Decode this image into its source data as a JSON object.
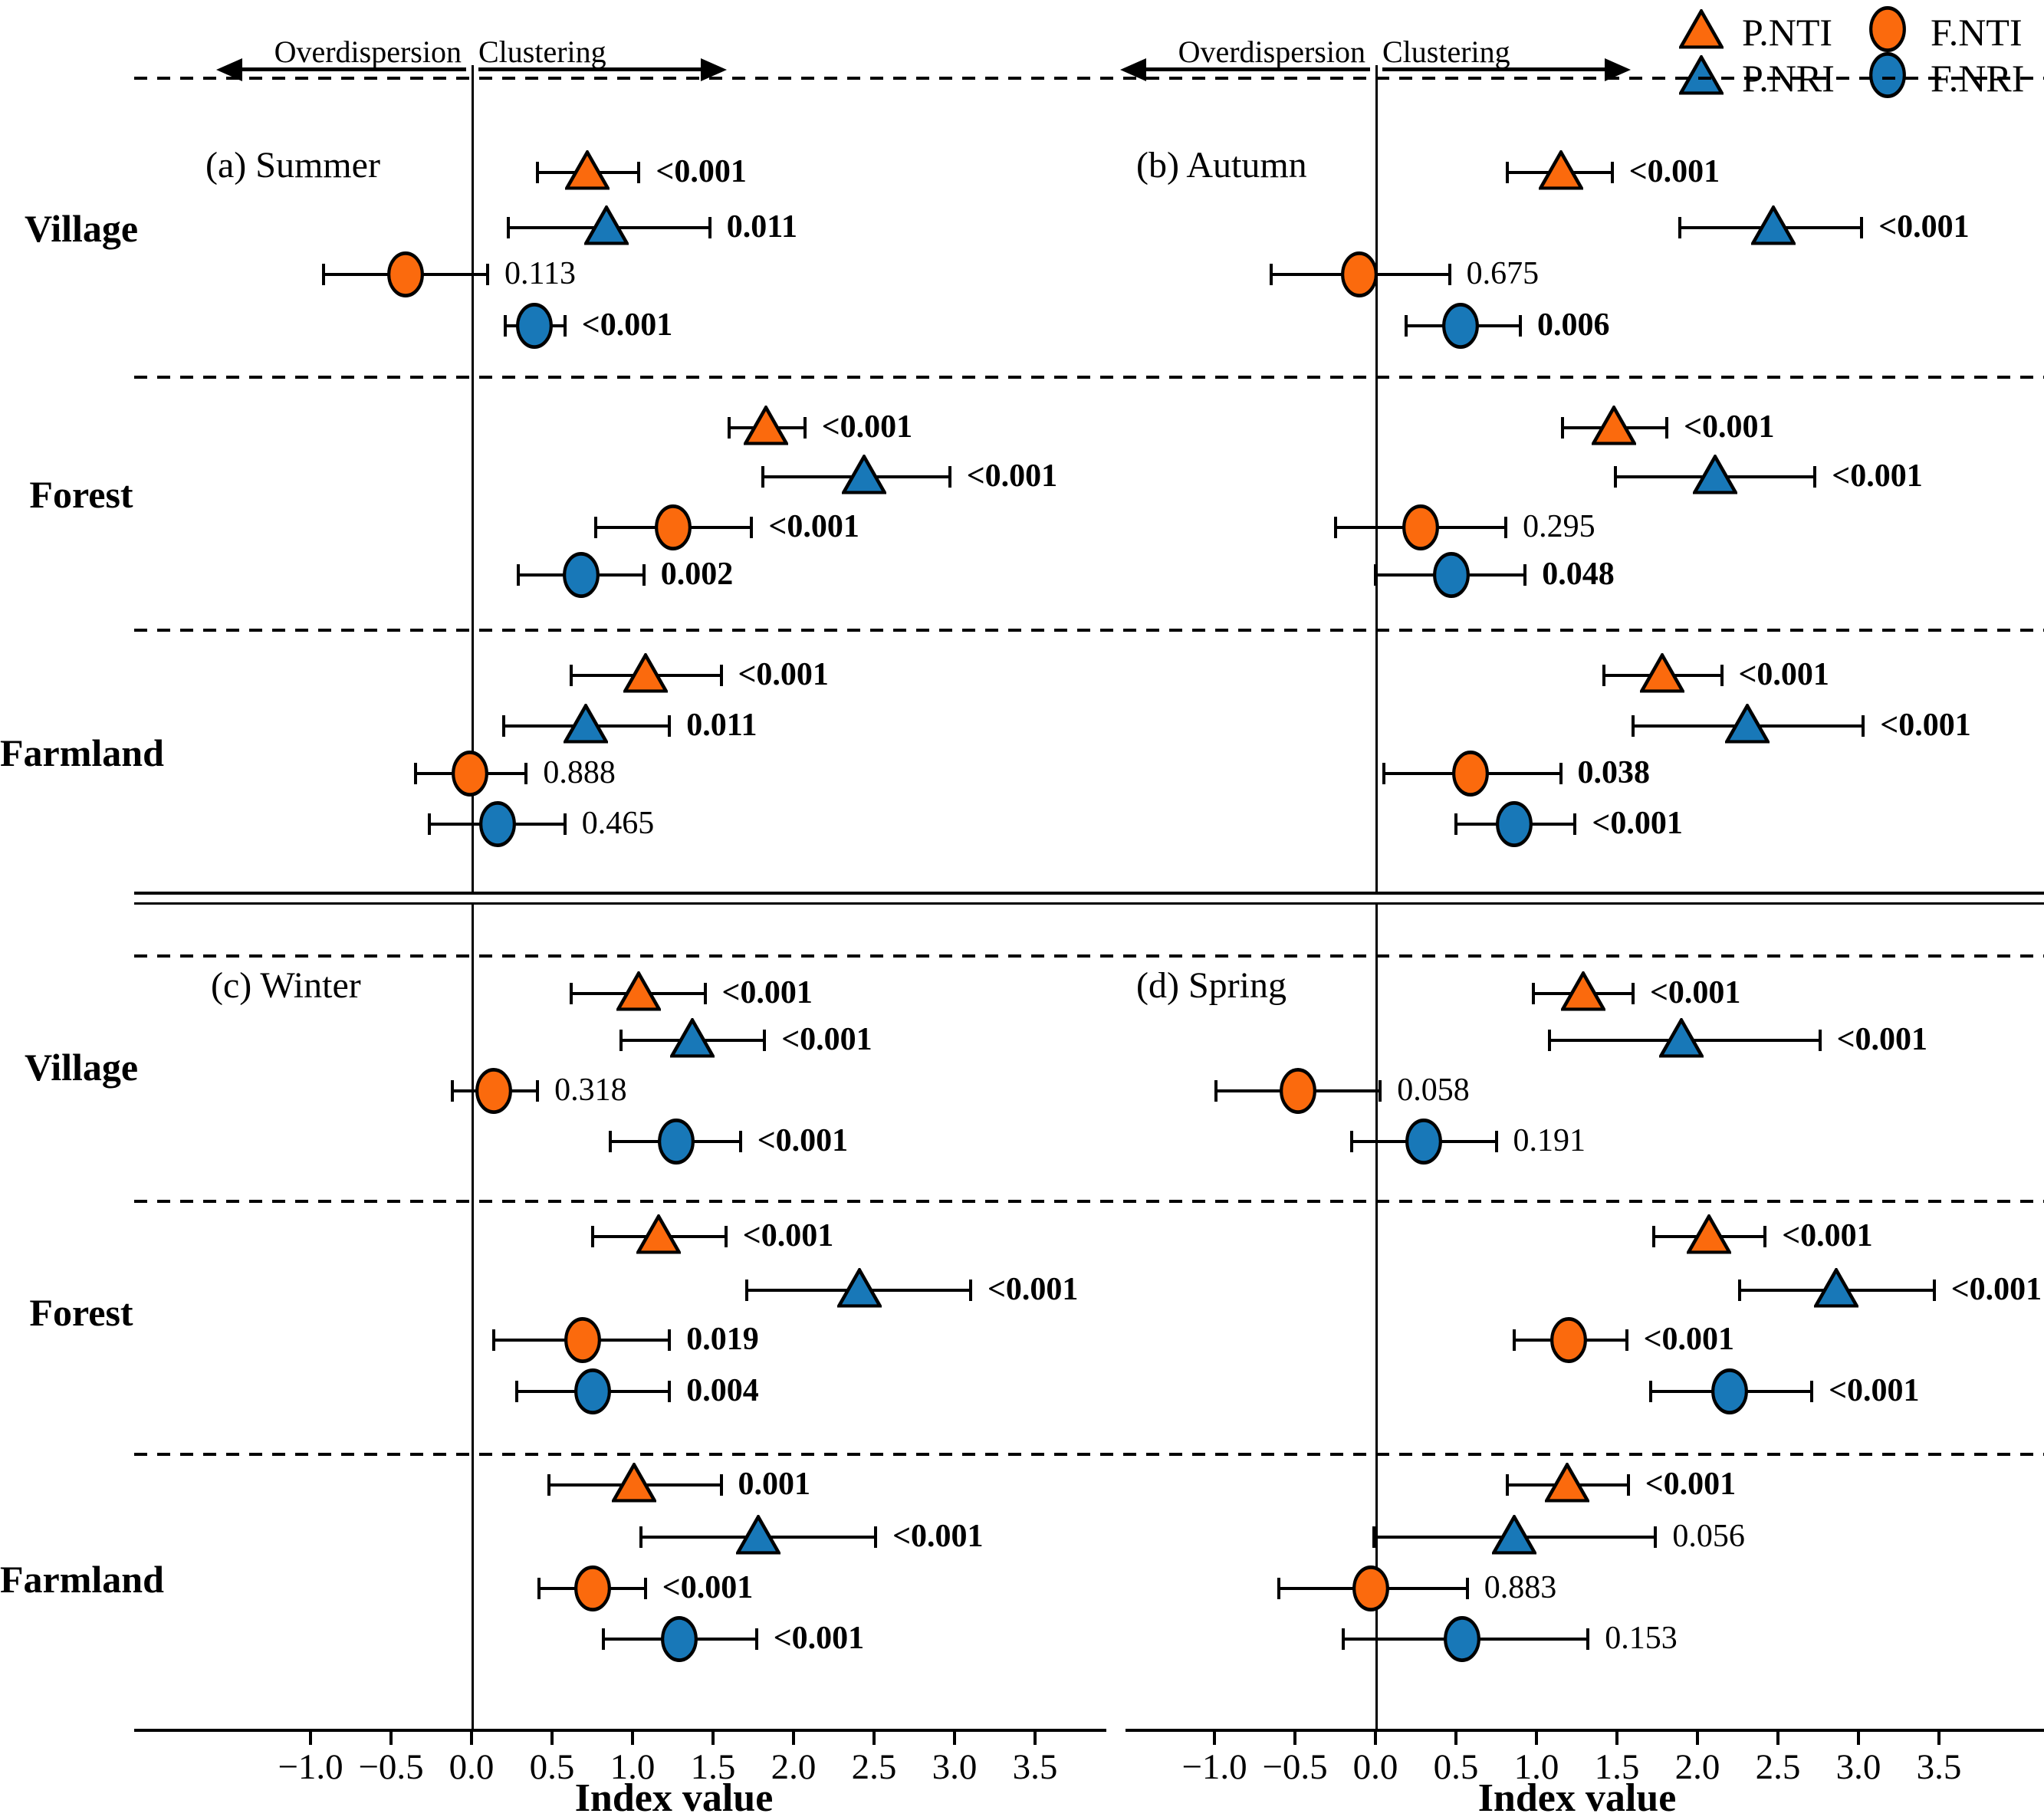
{
  "figure": {
    "legend": [
      {
        "label": "P.NTI",
        "shape": "triangle",
        "color": "#FB6A0D"
      },
      {
        "label": "F.NTI",
        "shape": "circle",
        "color": "#FB6A0D"
      },
      {
        "label": "P.NRI",
        "shape": "triangle",
        "color": "#1878B8"
      },
      {
        "label": "F.NRI",
        "shape": "circle",
        "color": "#1878B8"
      }
    ],
    "direction_labels": {
      "left": "Overdispersion",
      "right": "Clustering"
    },
    "row_groups": [
      "Village",
      "Forest",
      "Farmland"
    ],
    "colors": {
      "orange": "#FB6A0D",
      "blue": "#1878B8",
      "line": "#000000"
    }
  },
  "chart_data": {
    "type": "scatter",
    "subtype": "dot-and-whisker forest plot",
    "xlabel": "Index value",
    "x_ticks": [
      -1.0,
      -0.5,
      0.0,
      0.5,
      1.0,
      1.5,
      2.0,
      2.5,
      3.0,
      3.5
    ],
    "x_tick_labels": [
      "−1.0",
      "−0.5",
      "0.0",
      "0.5",
      "1.0",
      "1.5",
      "2.0",
      "2.5",
      "3.0",
      "3.5"
    ],
    "xlim_hint": [
      -2.1,
      4.15
    ],
    "grid": "dashed horizontal separators between habitat groups, vertical reference line at 0",
    "legend_position": "top-right",
    "series_order": [
      "P.NTI",
      "P.NRI",
      "F.NTI",
      "F.NRI"
    ],
    "panels": [
      {
        "id": "a",
        "title": "(a) Summer",
        "habitats": [
          {
            "name": "Village",
            "points": [
              {
                "series": "P.NTI",
                "value": 0.72,
                "ci_low": 0.41,
                "ci_high": 1.04,
                "p": "<0.001"
              },
              {
                "series": "P.NRI",
                "value": 0.84,
                "ci_low": 0.23,
                "ci_high": 1.48,
                "p": "0.011"
              },
              {
                "series": "F.NTI",
                "value": -0.41,
                "ci_low": -0.92,
                "ci_high": 0.1,
                "p": "0.113"
              },
              {
                "series": "F.NRI",
                "value": 0.39,
                "ci_low": 0.21,
                "ci_high": 0.58,
                "p": "<0.001"
              }
            ]
          },
          {
            "name": "Forest",
            "points": [
              {
                "series": "P.NTI",
                "value": 1.83,
                "ci_low": 1.6,
                "ci_high": 2.07,
                "p": "<0.001"
              },
              {
                "series": "P.NRI",
                "value": 2.44,
                "ci_low": 1.81,
                "ci_high": 2.97,
                "p": "<0.001"
              },
              {
                "series": "F.NTI",
                "value": 1.25,
                "ci_low": 0.77,
                "ci_high": 1.74,
                "p": "<0.001"
              },
              {
                "series": "F.NRI",
                "value": 0.68,
                "ci_low": 0.29,
                "ci_high": 1.07,
                "p": "0.002"
              }
            ]
          },
          {
            "name": "Farmland",
            "points": [
              {
                "series": "P.NTI",
                "value": 1.08,
                "ci_low": 0.62,
                "ci_high": 1.55,
                "p": "<0.001"
              },
              {
                "series": "P.NRI",
                "value": 0.71,
                "ci_low": 0.2,
                "ci_high": 1.23,
                "p": "0.011"
              },
              {
                "series": "F.NTI",
                "value": -0.01,
                "ci_low": -0.35,
                "ci_high": 0.34,
                "p": "0.888"
              },
              {
                "series": "F.NRI",
                "value": 0.16,
                "ci_low": -0.26,
                "ci_high": 0.58,
                "p": "0.465"
              }
            ]
          }
        ]
      },
      {
        "id": "b",
        "title": "(b) Autumn",
        "habitats": [
          {
            "name": "Village",
            "points": [
              {
                "series": "P.NTI",
                "value": 1.15,
                "ci_low": 0.82,
                "ci_high": 1.47,
                "p": "<0.001"
              },
              {
                "series": "P.NRI",
                "value": 2.47,
                "ci_low": 1.89,
                "ci_high": 3.02,
                "p": "<0.001"
              },
              {
                "series": "F.NTI",
                "value": -0.1,
                "ci_low": -0.65,
                "ci_high": 0.46,
                "p": "0.675"
              },
              {
                "series": "F.NRI",
                "value": 0.53,
                "ci_low": 0.19,
                "ci_high": 0.9,
                "p": "0.006"
              }
            ]
          },
          {
            "name": "Forest",
            "points": [
              {
                "series": "P.NTI",
                "value": 1.48,
                "ci_low": 1.16,
                "ci_high": 1.81,
                "p": "<0.001"
              },
              {
                "series": "P.NRI",
                "value": 2.11,
                "ci_low": 1.49,
                "ci_high": 2.73,
                "p": "<0.001"
              },
              {
                "series": "F.NTI",
                "value": 0.28,
                "ci_low": -0.25,
                "ci_high": 0.81,
                "p": "0.295"
              },
              {
                "series": "F.NRI",
                "value": 0.47,
                "ci_low": 0.0,
                "ci_high": 0.93,
                "p": "0.048"
              }
            ]
          },
          {
            "name": "Farmland",
            "points": [
              {
                "series": "P.NTI",
                "value": 1.78,
                "ci_low": 1.42,
                "ci_high": 2.15,
                "p": "<0.001"
              },
              {
                "series": "P.NRI",
                "value": 2.31,
                "ci_low": 1.6,
                "ci_high": 3.03,
                "p": "<0.001"
              },
              {
                "series": "F.NTI",
                "value": 0.59,
                "ci_low": 0.05,
                "ci_high": 1.15,
                "p": "0.038"
              },
              {
                "series": "F.NRI",
                "value": 0.86,
                "ci_low": 0.5,
                "ci_high": 1.24,
                "p": "<0.001"
              }
            ]
          }
        ]
      },
      {
        "id": "c",
        "title": "(c) Winter",
        "habitats": [
          {
            "name": "Village",
            "points": [
              {
                "series": "P.NTI",
                "value": 1.04,
                "ci_low": 0.62,
                "ci_high": 1.45,
                "p": "<0.001"
              },
              {
                "series": "P.NRI",
                "value": 1.37,
                "ci_low": 0.93,
                "ci_high": 1.82,
                "p": "<0.001"
              },
              {
                "series": "F.NTI",
                "value": 0.14,
                "ci_low": -0.12,
                "ci_high": 0.41,
                "p": "0.318"
              },
              {
                "series": "F.NRI",
                "value": 1.27,
                "ci_low": 0.86,
                "ci_high": 1.67,
                "p": "<0.001"
              }
            ]
          },
          {
            "name": "Forest",
            "points": [
              {
                "series": "P.NTI",
                "value": 1.16,
                "ci_low": 0.75,
                "ci_high": 1.58,
                "p": "<0.001"
              },
              {
                "series": "P.NRI",
                "value": 2.41,
                "ci_low": 1.71,
                "ci_high": 3.1,
                "p": "<0.001"
              },
              {
                "series": "F.NTI",
                "value": 0.69,
                "ci_low": 0.14,
                "ci_high": 1.23,
                "p": "0.019"
              },
              {
                "series": "F.NRI",
                "value": 0.75,
                "ci_low": 0.28,
                "ci_high": 1.23,
                "p": "0.004"
              }
            ]
          },
          {
            "name": "Farmland",
            "points": [
              {
                "series": "P.NTI",
                "value": 1.01,
                "ci_low": 0.48,
                "ci_high": 1.55,
                "p": "0.001"
              },
              {
                "series": "P.NRI",
                "value": 1.78,
                "ci_low": 1.05,
                "ci_high": 2.51,
                "p": "<0.001"
              },
              {
                "series": "F.NTI",
                "value": 0.75,
                "ci_low": 0.42,
                "ci_high": 1.08,
                "p": "<0.001"
              },
              {
                "series": "F.NRI",
                "value": 1.29,
                "ci_low": 0.82,
                "ci_high": 1.77,
                "p": "<0.001"
              }
            ]
          }
        ]
      },
      {
        "id": "d",
        "title": "(d) Spring",
        "habitats": [
          {
            "name": "Village",
            "points": [
              {
                "series": "P.NTI",
                "value": 1.29,
                "ci_low": 0.98,
                "ci_high": 1.6,
                "p": "<0.001"
              },
              {
                "series": "P.NRI",
                "value": 1.9,
                "ci_low": 1.08,
                "ci_high": 2.76,
                "p": "<0.001"
              },
              {
                "series": "F.NTI",
                "value": -0.48,
                "ci_low": -0.99,
                "ci_high": 0.03,
                "p": "0.058"
              },
              {
                "series": "F.NRI",
                "value": 0.3,
                "ci_low": -0.15,
                "ci_high": 0.75,
                "p": "0.191"
              }
            ]
          },
          {
            "name": "Forest",
            "points": [
              {
                "series": "P.NTI",
                "value": 2.07,
                "ci_low": 1.73,
                "ci_high": 2.42,
                "p": "<0.001"
              },
              {
                "series": "P.NRI",
                "value": 2.86,
                "ci_low": 2.26,
                "ci_high": 3.47,
                "p": "<0.001"
              },
              {
                "series": "F.NTI",
                "value": 1.2,
                "ci_low": 0.86,
                "ci_high": 1.56,
                "p": "<0.001"
              },
              {
                "series": "F.NRI",
                "value": 2.2,
                "ci_low": 1.71,
                "ci_high": 2.71,
                "p": "<0.001"
              }
            ]
          },
          {
            "name": "Farmland",
            "points": [
              {
                "series": "P.NTI",
                "value": 1.19,
                "ci_low": 0.82,
                "ci_high": 1.57,
                "p": "<0.001"
              },
              {
                "series": "P.NRI",
                "value": 0.86,
                "ci_low": -0.01,
                "ci_high": 1.74,
                "p": "0.056"
              },
              {
                "series": "F.NTI",
                "value": -0.03,
                "ci_low": -0.6,
                "ci_high": 0.57,
                "p": "0.883"
              },
              {
                "series": "F.NRI",
                "value": 0.54,
                "ci_low": -0.2,
                "ci_high": 1.32,
                "p": "0.153"
              }
            ]
          }
        ]
      }
    ]
  }
}
